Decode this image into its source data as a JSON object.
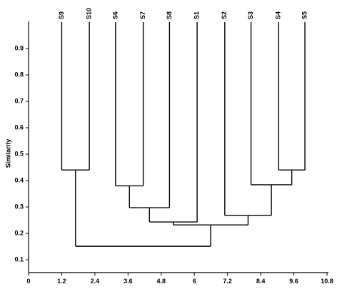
{
  "chart_data": {
    "type": "dendrogram",
    "y_label": "Similarity",
    "leaves": [
      "S9",
      "S10",
      "S6",
      "S7",
      "S8",
      "S1",
      "S2",
      "S3",
      "S4",
      "S5"
    ],
    "leaf_x": [
      1.2,
      2.2,
      3.15,
      4.15,
      5.1,
      6.1,
      7.1,
      8.05,
      9.05,
      10.0
    ],
    "merges": [
      {
        "children": [
          0,
          1
        ],
        "height": 0.44
      },
      {
        "children": [
          2,
          3
        ],
        "height": 0.38
      },
      {
        "children": [
          11,
          4
        ],
        "height": 0.297
      },
      {
        "children": [
          12,
          5
        ],
        "height": 0.243
      },
      {
        "children": [
          8,
          9
        ],
        "height": 0.44
      },
      {
        "children": [
          7,
          14
        ],
        "height": 0.384
      },
      {
        "children": [
          6,
          15
        ],
        "height": 0.268
      },
      {
        "children": [
          13,
          16
        ],
        "height": 0.232
      },
      {
        "children": [
          10,
          17
        ],
        "height": 0.151
      }
    ],
    "xlim": [
      0,
      10.8
    ],
    "xticks": [
      0,
      1.2,
      2.4,
      3.6,
      4.8,
      6,
      7.2,
      8.4,
      9.6,
      10.8
    ],
    "ylim": [
      0.05,
      1.0
    ],
    "yticks": [
      0.1,
      0.2,
      0.3,
      0.4,
      0.5,
      0.6,
      0.7,
      0.8,
      0.9
    ],
    "color": "#000000"
  }
}
